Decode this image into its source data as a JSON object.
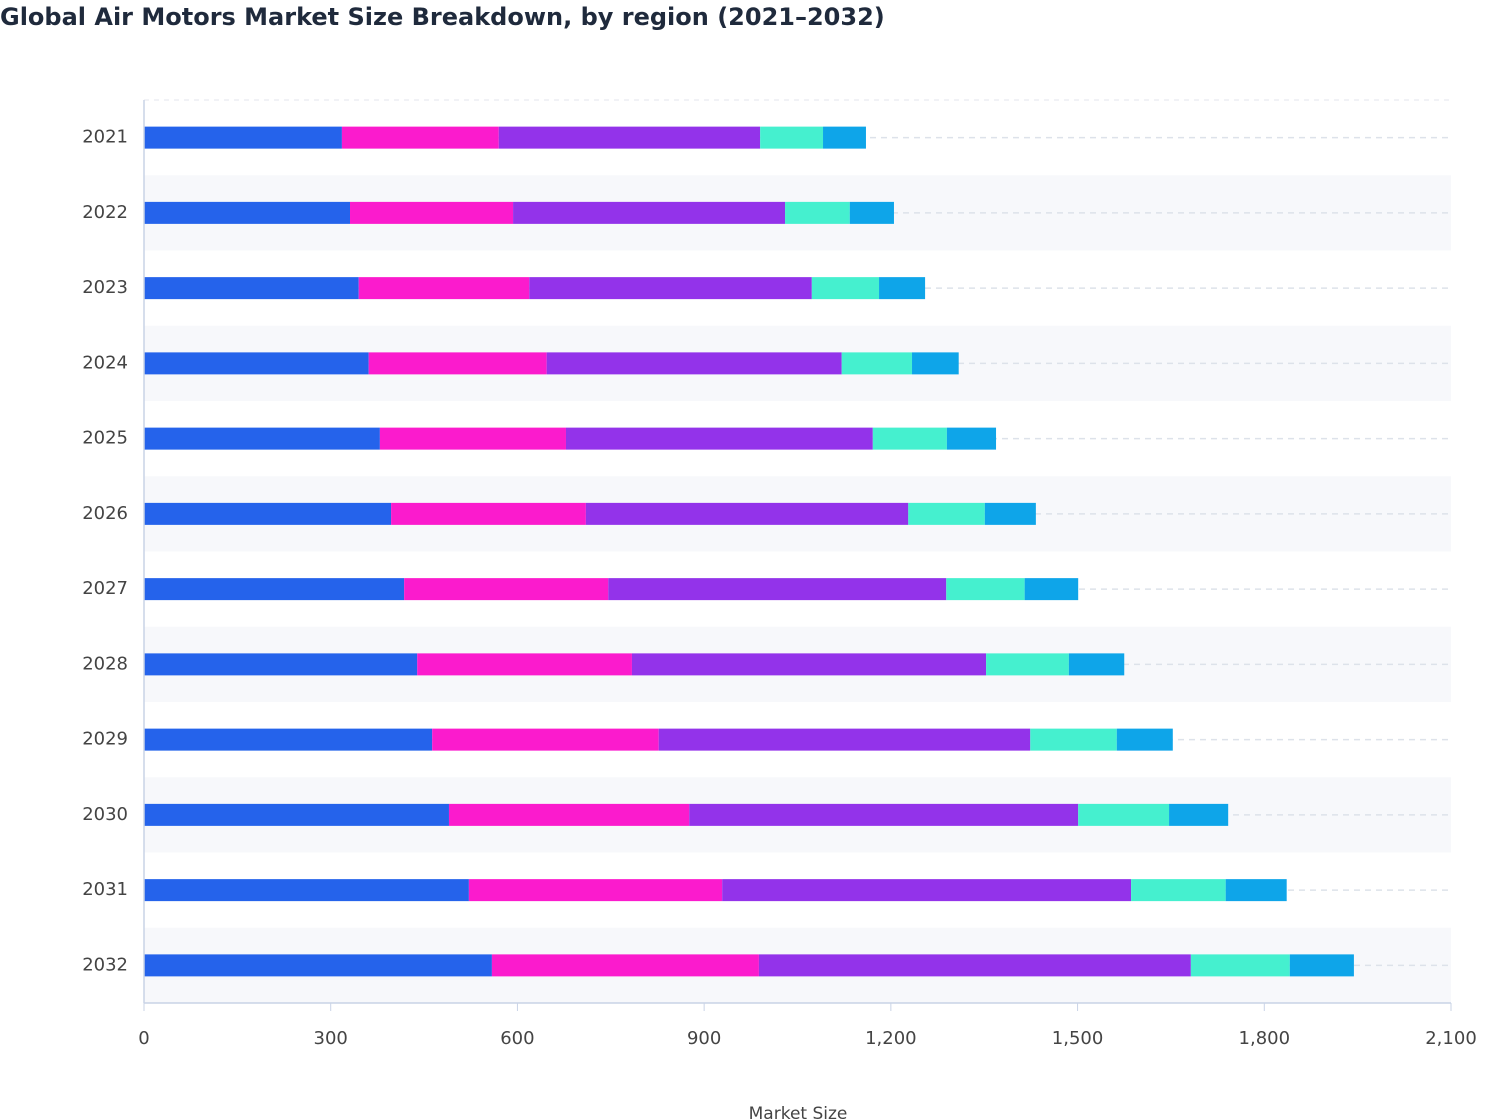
{
  "chart_data": {
    "type": "stacked-bar-horizontal",
    "title": "Global Air Motors Market Size Breakdown, by region (2021–2032)",
    "x_label": "Market Size",
    "categories": [
      "2021",
      "2022",
      "2023",
      "2024",
      "2025",
      "2026",
      "2027",
      "2028",
      "2029",
      "2030",
      "2031",
      "2032"
    ],
    "series": [
      {
        "color": "#2563eb",
        "values": [
          318,
          331,
          345,
          361,
          379,
          397,
          418,
          439,
          463,
          490,
          522,
          559
        ]
      },
      {
        "color": "#fb1bcd",
        "values": [
          252,
          262,
          274,
          286,
          299,
          313,
          328,
          345,
          364,
          386,
          407,
          429
        ]
      },
      {
        "color": "#9333ea",
        "values": [
          420,
          437,
          454,
          474,
          493,
          518,
          543,
          569,
          597,
          625,
          657,
          694
        ]
      },
      {
        "color": "#45f0cf",
        "values": [
          101,
          104,
          108,
          113,
          119,
          123,
          126,
          133,
          139,
          146,
          152,
          159
        ]
      },
      {
        "color": "#0ea5e9",
        "values": [
          69,
          71,
          74,
          75,
          79,
          82,
          86,
          89,
          90,
          95,
          98,
          103
        ]
      }
    ],
    "xlim": [
      0,
      2100
    ],
    "xticks": [
      0,
      300,
      600,
      900,
      {
        "value": 1200,
        "label": "1,200"
      },
      {
        "value": 1500,
        "label": "1,500"
      },
      {
        "value": 1800,
        "label": "1,800"
      },
      {
        "value": 2100,
        "label": "2,100"
      }
    ],
    "grid": true
  }
}
